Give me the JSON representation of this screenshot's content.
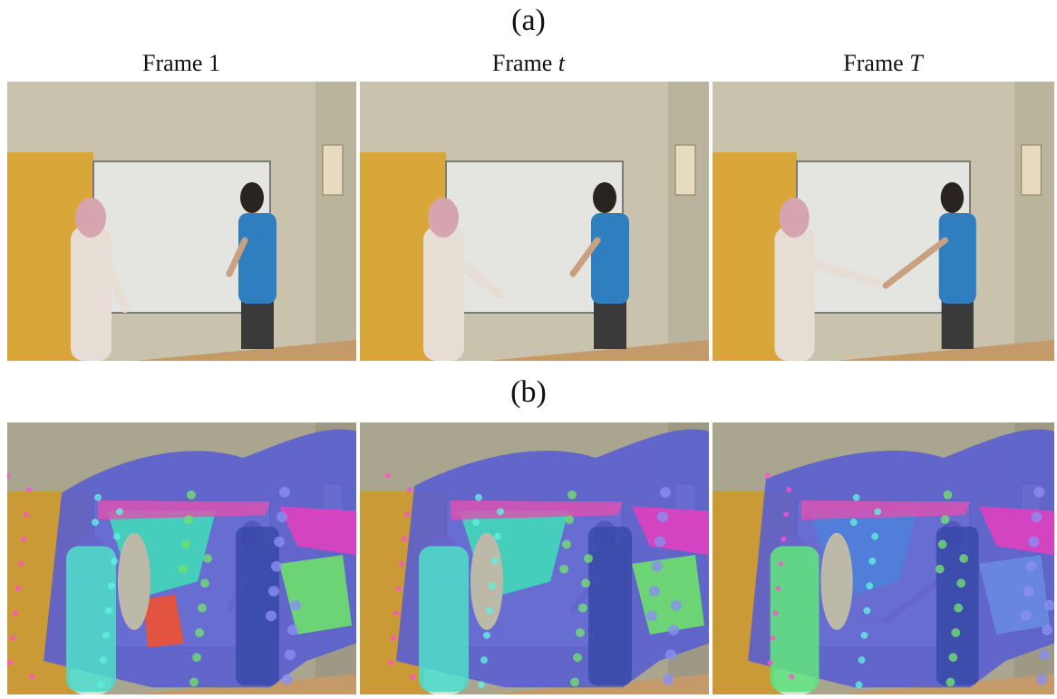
{
  "figure": {
    "panel_a_label": "(a)",
    "panel_b_label": "(b)",
    "frames": [
      {
        "word": "Frame",
        "index": "1"
      },
      {
        "word": "Frame",
        "index": "t"
      },
      {
        "word": "Frame",
        "index": "T"
      }
    ]
  }
}
